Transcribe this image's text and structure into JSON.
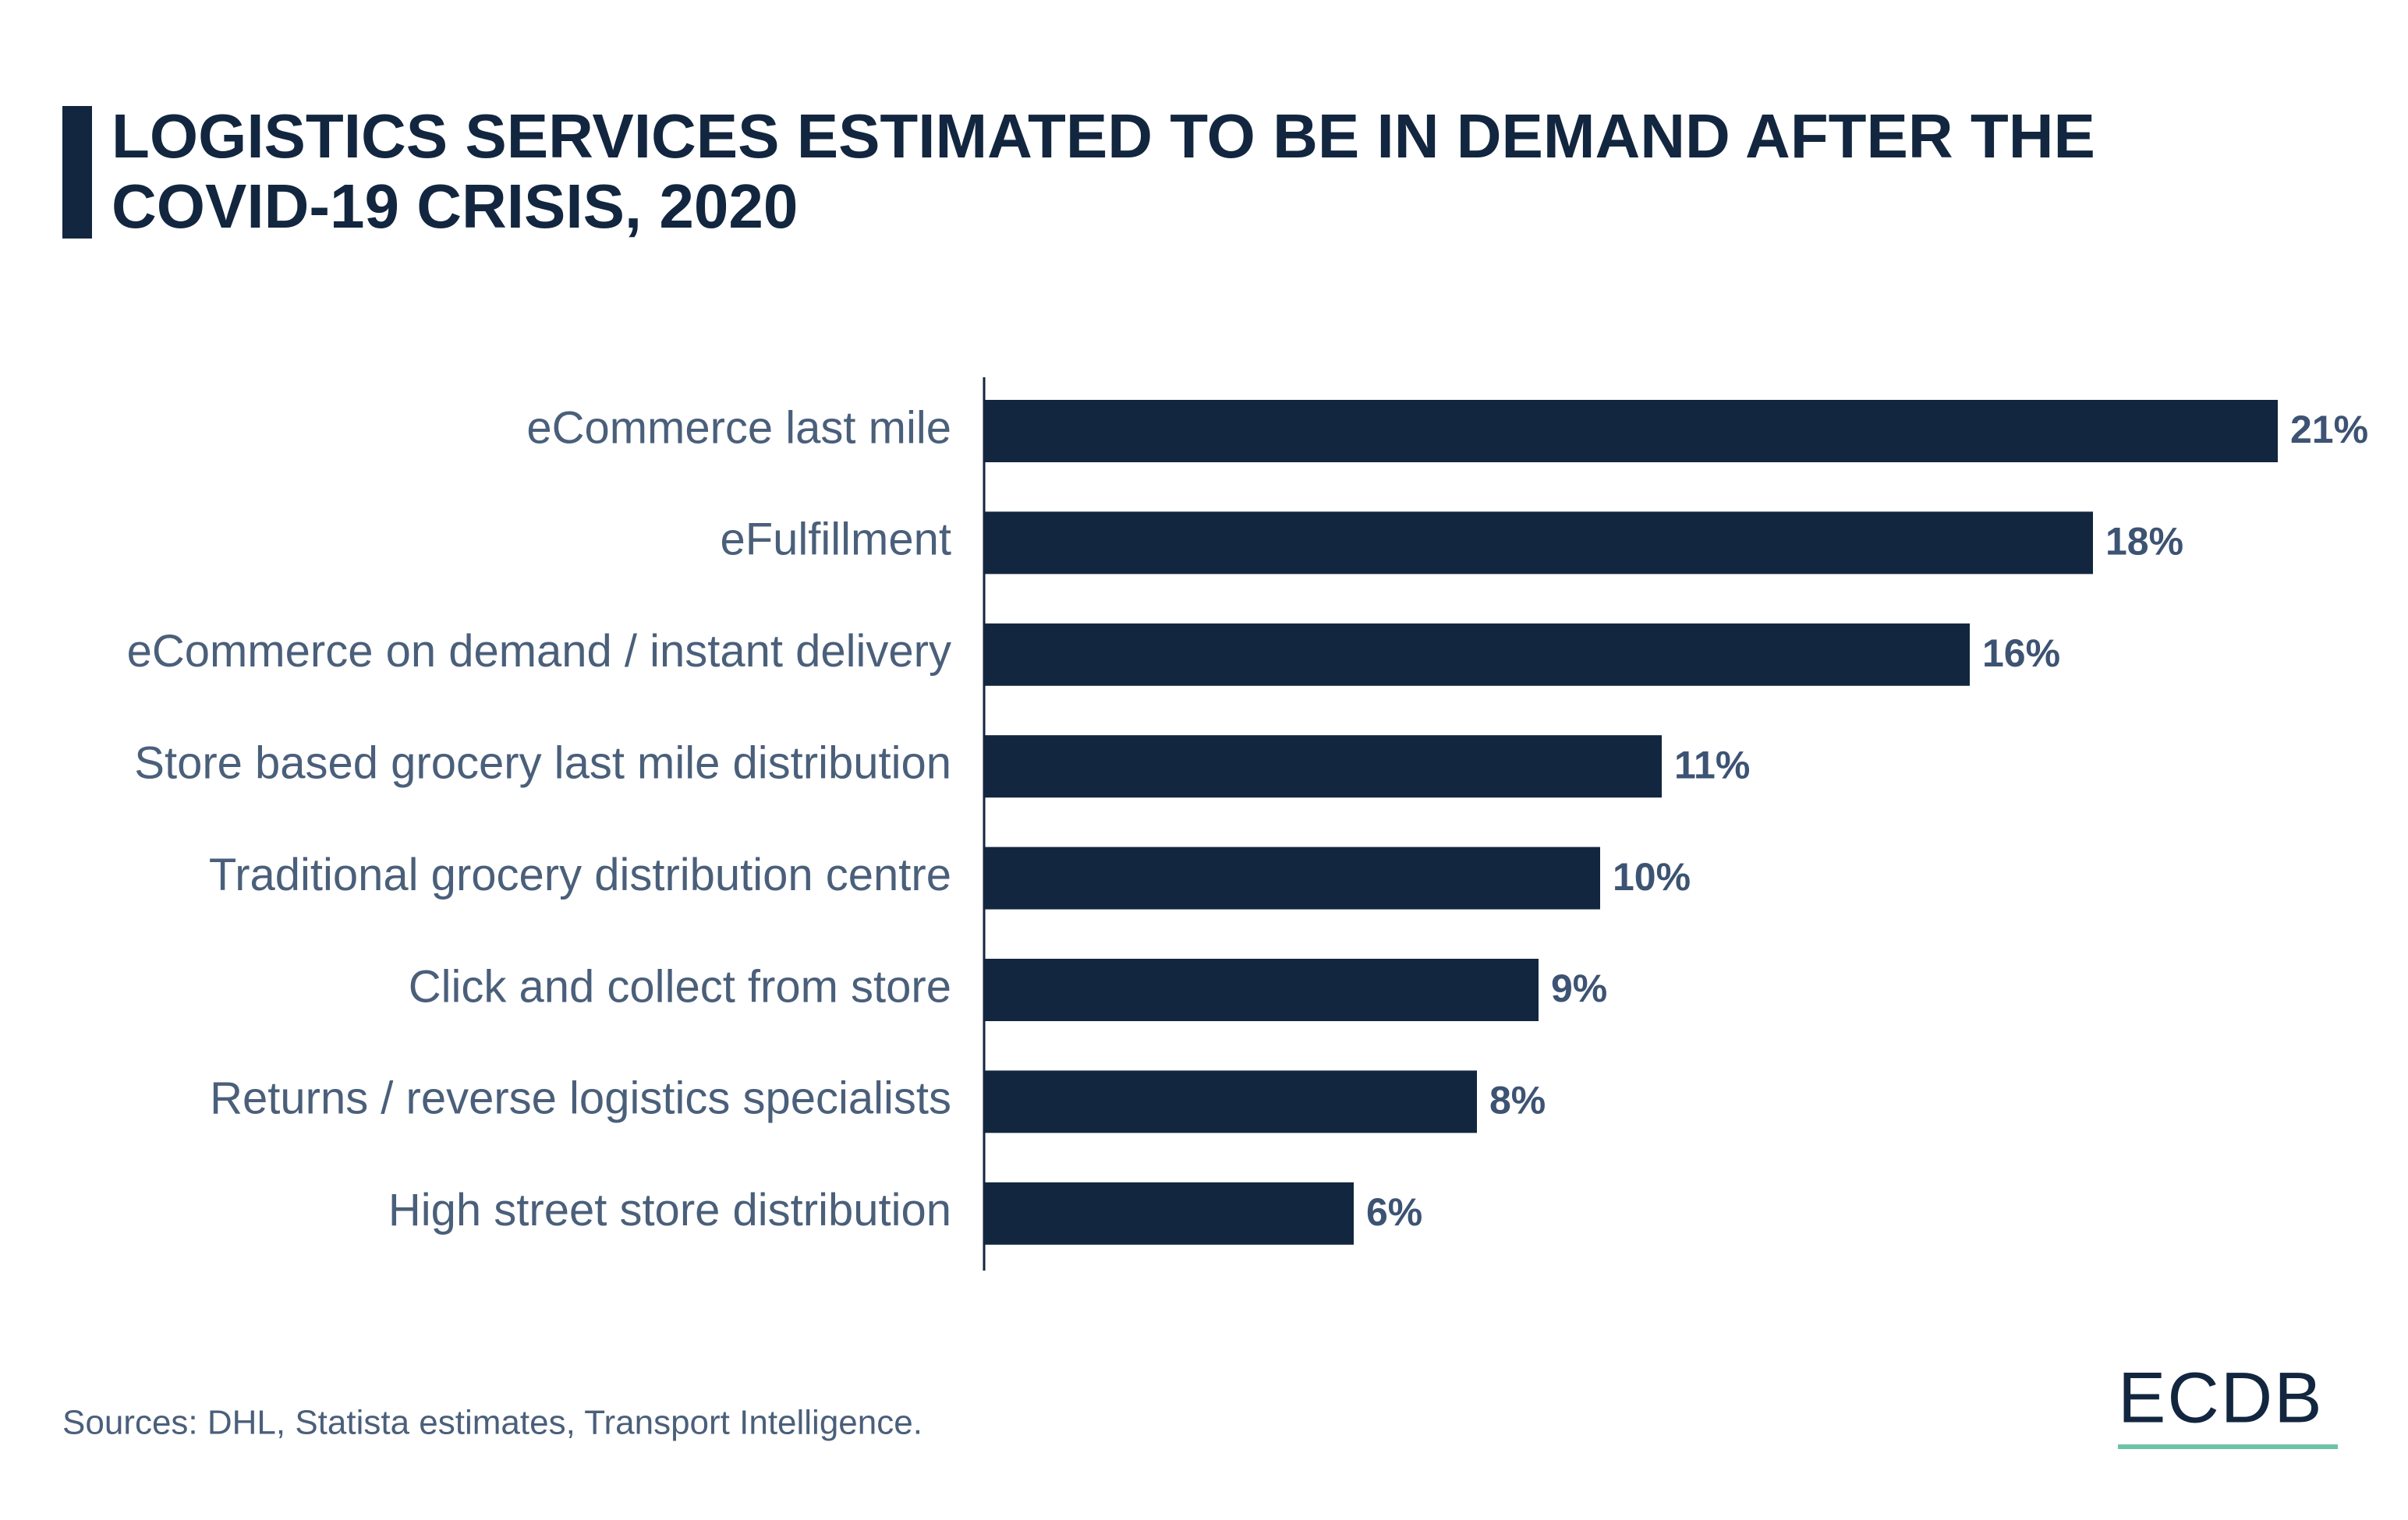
{
  "chart_data": {
    "type": "bar",
    "orientation": "horizontal",
    "title": "LOGISTICS SERVICES ESTIMATED TO BE IN DEMAND AFTER THE COVID-19 CRISIS, 2020",
    "categories": [
      "eCommerce last mile",
      "eFulfillment",
      "eCommerce on demand / instant delivery",
      "Store based grocery last mile distribution",
      "Traditional grocery distribution centre",
      "Click and collect from store",
      "Returns / reverse logistics specialists",
      "High street store distribution"
    ],
    "values": [
      21,
      18,
      16,
      11,
      10,
      9,
      8,
      6
    ],
    "value_labels": [
      "21%",
      "18%",
      "16%",
      "11%",
      "10%",
      "9%",
      "8%",
      "6%"
    ],
    "color": "#12263f",
    "source": "Sources: DHL, Statista estimates, Transport Intelligence.",
    "logo": "ECDB"
  }
}
